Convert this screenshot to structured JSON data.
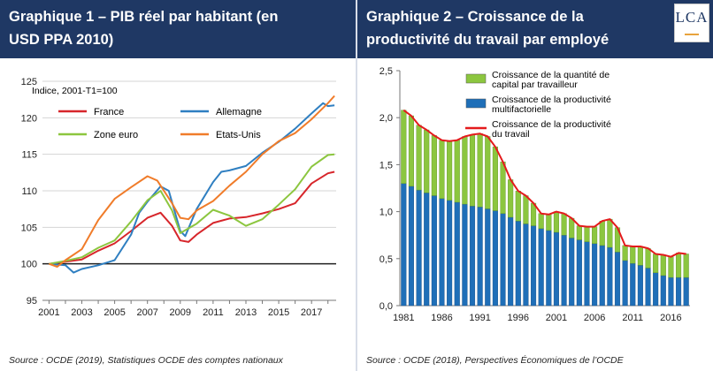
{
  "colors": {
    "header": "#1f3864",
    "france": "#d7262b",
    "allemagne": "#2f7fc1",
    "zone_euro": "#8cc63f",
    "etats_unis": "#f07c2a",
    "capital": "#8cc63f",
    "multifactorielle": "#1f6fb8",
    "productivite": "#e41a1c"
  },
  "logo": {
    "text": "LCA"
  },
  "chart_data": [
    {
      "type": "line",
      "title": "Graphique 1 – PIB réel par habitant (en USD PPA 2010)",
      "ylabel": "Indice, 2001-T1=100",
      "xlabel": "",
      "ylim": [
        95,
        125
      ],
      "xlim": [
        2000.6,
        2018.5
      ],
      "yticks": [
        95,
        100,
        105,
        110,
        115,
        120,
        125
      ],
      "xtick_labels": [
        "2001",
        "2003",
        "2005",
        "2007",
        "2009",
        "2011",
        "2013",
        "2015",
        "2017"
      ],
      "grid": true,
      "legend_position": "top-left",
      "source": "Source : OCDE (2019), Statistiques OCDE des comptes nationaux",
      "series": [
        {
          "name": "France",
          "color_key": "france",
          "points": [
            [
              2001.0,
              100.0
            ],
            [
              2002.0,
              100.3
            ],
            [
              2003.0,
              100.6
            ],
            [
              2004.0,
              101.8
            ],
            [
              2005.0,
              102.8
            ],
            [
              2006.0,
              104.5
            ],
            [
              2007.0,
              106.3
            ],
            [
              2007.8,
              107.0
            ],
            [
              2008.5,
              105.2
            ],
            [
              2009.0,
              103.2
            ],
            [
              2009.5,
              103.0
            ],
            [
              2010.0,
              104.0
            ],
            [
              2011.0,
              105.6
            ],
            [
              2012.0,
              106.2
            ],
            [
              2013.0,
              106.4
            ],
            [
              2014.0,
              106.9
            ],
            [
              2015.0,
              107.5
            ],
            [
              2016.0,
              108.3
            ],
            [
              2017.0,
              111.0
            ],
            [
              2018.0,
              112.4
            ],
            [
              2018.4,
              112.6
            ]
          ]
        },
        {
          "name": "Allemagne",
          "color_key": "allemagne",
          "points": [
            [
              2001.0,
              100.0
            ],
            [
              2002.0,
              99.8
            ],
            [
              2002.5,
              98.8
            ],
            [
              2003.0,
              99.3
            ],
            [
              2004.0,
              99.8
            ],
            [
              2005.0,
              100.5
            ],
            [
              2006.0,
              104.0
            ],
            [
              2006.5,
              107.0
            ],
            [
              2007.0,
              108.5
            ],
            [
              2007.8,
              110.6
            ],
            [
              2008.3,
              110.0
            ],
            [
              2009.0,
              104.5
            ],
            [
              2009.3,
              103.8
            ],
            [
              2010.0,
              107.5
            ],
            [
              2011.0,
              111.2
            ],
            [
              2011.5,
              112.6
            ],
            [
              2012.0,
              112.8
            ],
            [
              2013.0,
              113.4
            ],
            [
              2014.0,
              115.2
            ],
            [
              2015.0,
              116.7
            ],
            [
              2016.0,
              118.5
            ],
            [
              2017.0,
              120.6
            ],
            [
              2017.7,
              122.0
            ],
            [
              2018.0,
              121.6
            ],
            [
              2018.4,
              121.7
            ]
          ]
        },
        {
          "name": "Zone euro",
          "color_key": "zone_euro",
          "points": [
            [
              2001.0,
              100.0
            ],
            [
              2002.0,
              100.4
            ],
            [
              2003.0,
              100.9
            ],
            [
              2004.0,
              102.2
            ],
            [
              2005.0,
              103.2
            ],
            [
              2006.0,
              105.8
            ],
            [
              2007.0,
              108.7
            ],
            [
              2007.8,
              110.0
            ],
            [
              2008.5,
              107.3
            ],
            [
              2009.0,
              104.2
            ],
            [
              2010.0,
              105.5
            ],
            [
              2011.0,
              107.4
            ],
            [
              2012.0,
              106.6
            ],
            [
              2013.0,
              105.2
            ],
            [
              2014.0,
              106.1
            ],
            [
              2015.0,
              108.1
            ],
            [
              2016.0,
              110.2
            ],
            [
              2017.0,
              113.3
            ],
            [
              2018.0,
              114.9
            ],
            [
              2018.4,
              115.0
            ]
          ]
        },
        {
          "name": "Etats-Unis",
          "color_key": "etats_unis",
          "points": [
            [
              2001.0,
              100.0
            ],
            [
              2001.5,
              99.6
            ],
            [
              2002.0,
              100.5
            ],
            [
              2003.0,
              102.0
            ],
            [
              2004.0,
              106.0
            ],
            [
              2005.0,
              108.9
            ],
            [
              2006.0,
              110.5
            ],
            [
              2007.0,
              112.0
            ],
            [
              2007.6,
              111.4
            ],
            [
              2008.5,
              108.3
            ],
            [
              2009.0,
              106.3
            ],
            [
              2009.5,
              106.1
            ],
            [
              2010.0,
              107.3
            ],
            [
              2011.0,
              108.6
            ],
            [
              2012.0,
              110.7
            ],
            [
              2013.0,
              112.6
            ],
            [
              2014.0,
              115.0
            ],
            [
              2015.0,
              116.8
            ],
            [
              2016.0,
              117.9
            ],
            [
              2017.0,
              119.8
            ],
            [
              2018.0,
              122.0
            ],
            [
              2018.4,
              123.0
            ]
          ]
        }
      ]
    },
    {
      "type": "bar",
      "stacked": true,
      "title": "Graphique 2 – Croissance de la productivité du travail par employé",
      "xlabel": "",
      "ylabel": "",
      "ylim": [
        0,
        2.5
      ],
      "yticks": [
        "0,0",
        "0,5",
        "1,0",
        "1,5",
        "2,0",
        "2,5"
      ],
      "xtick_labels": [
        "1981",
        "1986",
        "1991",
        "1996",
        "2001",
        "2006",
        "2011",
        "2016"
      ],
      "grid": false,
      "legend_position": "top-right",
      "source": "Source : OCDE (2018), Perspectives Économiques de l’OCDE",
      "categories": [
        1981,
        1982,
        1983,
        1984,
        1985,
        1986,
        1987,
        1988,
        1989,
        1990,
        1991,
        1992,
        1993,
        1994,
        1995,
        1996,
        1997,
        1998,
        1999,
        2000,
        2001,
        2002,
        2003,
        2004,
        2005,
        2006,
        2007,
        2008,
        2009,
        2010,
        2011,
        2012,
        2013,
        2014,
        2015,
        2016,
        2017,
        2018
      ],
      "series": [
        {
          "name": "Croissance de la quantité de capital par travailleur",
          "color_key": "capital",
          "values": [
            0.78,
            0.75,
            0.69,
            0.67,
            0.64,
            0.62,
            0.63,
            0.66,
            0.72,
            0.76,
            0.78,
            0.77,
            0.68,
            0.55,
            0.4,
            0.32,
            0.3,
            0.24,
            0.16,
            0.17,
            0.22,
            0.23,
            0.21,
            0.15,
            0.16,
            0.18,
            0.26,
            0.3,
            0.26,
            0.16,
            0.18,
            0.2,
            0.21,
            0.2,
            0.22,
            0.22,
            0.26,
            0.25
          ]
        },
        {
          "name": "Croissance de la productivité multifactorielle",
          "color_key": "multifactorielle",
          "values": [
            1.3,
            1.27,
            1.23,
            1.2,
            1.17,
            1.14,
            1.12,
            1.1,
            1.08,
            1.06,
            1.05,
            1.03,
            1.01,
            0.98,
            0.94,
            0.9,
            0.87,
            0.85,
            0.82,
            0.8,
            0.78,
            0.75,
            0.72,
            0.7,
            0.68,
            0.66,
            0.64,
            0.62,
            0.57,
            0.48,
            0.45,
            0.43,
            0.4,
            0.35,
            0.32,
            0.3,
            0.3,
            0.3
          ]
        },
        {
          "name": "Croissance de la productivité du travail",
          "color_key": "productivite",
          "type": "line",
          "values": [
            2.08,
            2.02,
            1.92,
            1.87,
            1.81,
            1.76,
            1.75,
            1.76,
            1.8,
            1.82,
            1.83,
            1.8,
            1.69,
            1.53,
            1.34,
            1.22,
            1.17,
            1.09,
            0.98,
            0.97,
            1.0,
            0.98,
            0.93,
            0.85,
            0.84,
            0.84,
            0.9,
            0.92,
            0.83,
            0.64,
            0.63,
            0.63,
            0.61,
            0.55,
            0.54,
            0.52,
            0.56,
            0.55
          ]
        }
      ]
    }
  ]
}
